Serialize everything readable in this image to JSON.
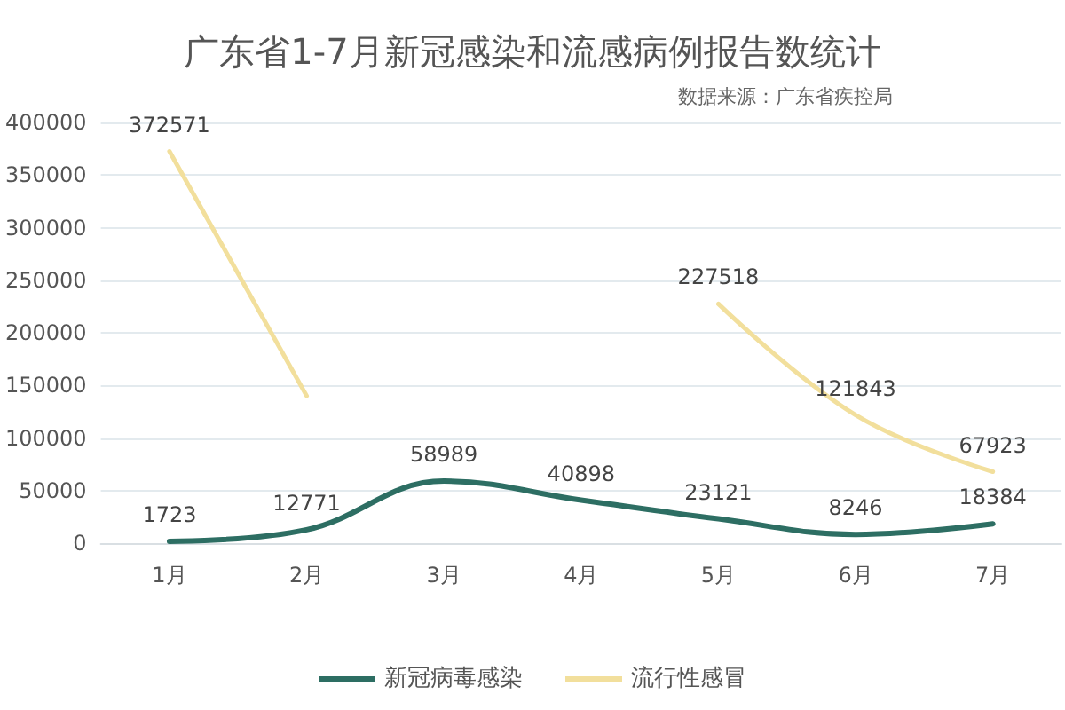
{
  "chart_data": {
    "type": "line",
    "title": "广东省1-7月新冠感染和流感病例报告数统计",
    "subtitle": "数据来源：广东省疾控局",
    "categories": [
      "1月",
      "2月",
      "3月",
      "4月",
      "5月",
      "6月",
      "7月"
    ],
    "series": [
      {
        "name": "新冠病毒感染",
        "color": "#2d6e63",
        "values": [
          1723,
          12771,
          58989,
          40898,
          23121,
          8246,
          18384
        ],
        "value_labels": [
          "1723",
          "12771",
          "58989",
          "40898",
          "23121",
          "8246",
          "18384"
        ]
      },
      {
        "name": "流行性感冒",
        "color": "#f2df9c",
        "values": [
          372571,
          140000,
          null,
          null,
          227518,
          121843,
          67923
        ],
        "value_labels": [
          "372571",
          null,
          null,
          null,
          "227518",
          "121843",
          "67923"
        ]
      }
    ],
    "ylim": [
      0,
      400000
    ],
    "yticks": [
      0,
      50000,
      100000,
      150000,
      200000,
      250000,
      300000,
      350000,
      400000
    ],
    "grid": "y",
    "legend": "bottom",
    "marker": "none",
    "line_style": "solid"
  }
}
